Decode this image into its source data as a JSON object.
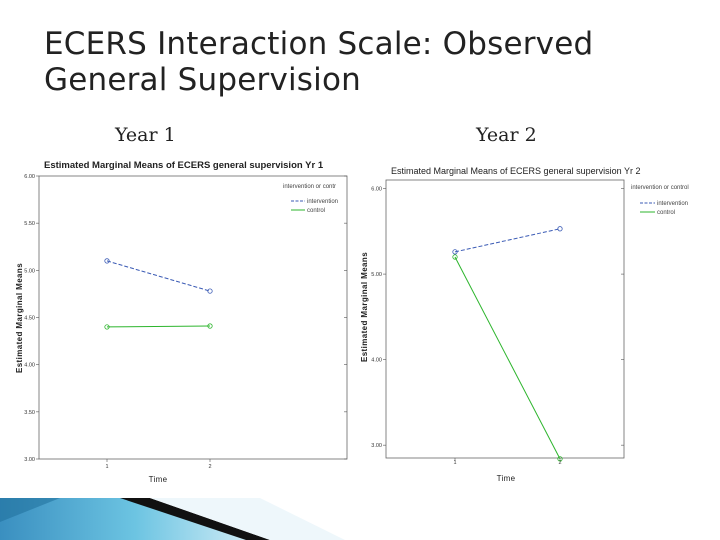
{
  "slide": {
    "title_line1": "ECERS Interaction Scale: Observed",
    "title_line2": "General Supervision",
    "year1_label": "Year 1",
    "year2_label": "Year 2"
  },
  "colors": {
    "intervention": "#3b5bb5",
    "control": "#2db52d",
    "accent_dark": "#111111",
    "accent_light": "#5ab4d6"
  },
  "chart_data": [
    {
      "type": "line",
      "title": "Estimated Marginal Means of ECERS general supervision Yr 1",
      "xlabel": "Time",
      "ylabel": "Estimated Marginal Means",
      "categories": [
        "1",
        "2"
      ],
      "ylim": [
        3.0,
        6.0
      ],
      "yticks": [
        3.0,
        3.5,
        4.0,
        4.5,
        5.0,
        5.5,
        6.0
      ],
      "ytick_labels": [
        "3.00",
        "3.50",
        "4.00",
        "4.50",
        "5.00",
        "5.50",
        "6.00"
      ],
      "legend_title": "intervention or contr",
      "legend_placement": "top-right",
      "grid": false,
      "series": [
        {
          "name": "intervention",
          "values": [
            5.1,
            4.78
          ],
          "color": "#3b5bb5",
          "dashed": true
        },
        {
          "name": "control",
          "values": [
            4.4,
            4.41
          ],
          "color": "#2db52d",
          "dashed": false
        }
      ]
    },
    {
      "type": "line",
      "title": "Estimated Marginal Means of ECERS general supervision Yr 2",
      "xlabel": "Time",
      "ylabel": "Estimated Marginal Means",
      "categories": [
        "1",
        "2"
      ],
      "ylim": [
        2.85,
        6.1
      ],
      "yticks": [
        3.0,
        4.0,
        5.0,
        6.0
      ],
      "ytick_labels": [
        "3.00",
        "4.00",
        "5.00",
        "6.00"
      ],
      "legend_title": "intervention or control",
      "legend_placement": "top-right",
      "grid": false,
      "series": [
        {
          "name": "intervention",
          "values": [
            5.26,
            5.53
          ],
          "color": "#3b5bb5",
          "dashed": true
        },
        {
          "name": "control",
          "values": [
            5.2,
            2.84
          ],
          "color": "#2db52d",
          "dashed": false
        }
      ]
    }
  ]
}
